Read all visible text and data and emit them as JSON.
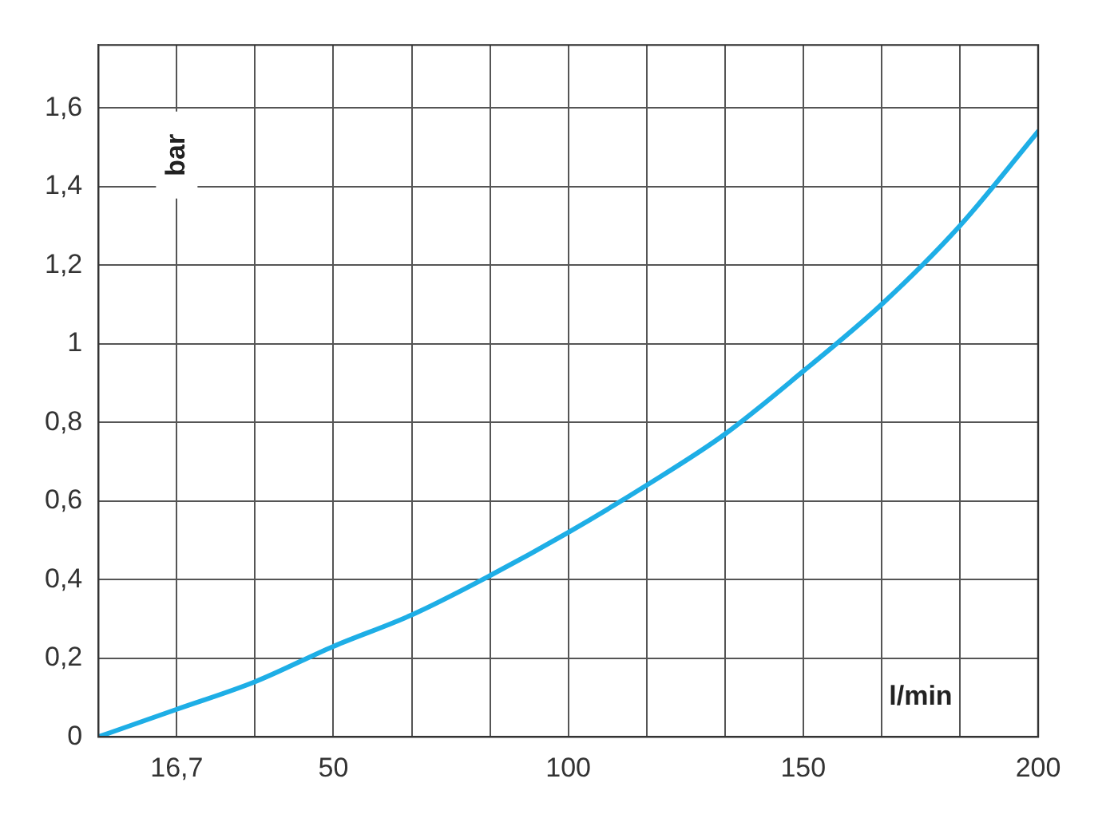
{
  "chart_data": {
    "type": "line",
    "xlabel": "l/min",
    "ylabel": "bar",
    "x": [
      0,
      16.67,
      33.33,
      50,
      66.67,
      83.33,
      100,
      116.67,
      133.33,
      150,
      166.67,
      183.33,
      200
    ],
    "series": [
      {
        "color": "#1eaee6",
        "values": [
          0,
          0.07,
          0.14,
          0.23,
          0.31,
          0.41,
          0.52,
          0.64,
          0.77,
          0.93,
          1.1,
          1.3,
          1.54
        ]
      }
    ],
    "xlim": [
      0,
      200
    ],
    "xticks": [
      {
        "value": 0,
        "label": null
      },
      {
        "value": 16.67,
        "label": "16,7"
      },
      {
        "value": 33.33,
        "label": null
      },
      50,
      {
        "value": 66.67,
        "label": null
      },
      {
        "value": 83.33,
        "label": null
      },
      100,
      {
        "value": 116.67,
        "label": null
      },
      {
        "value": 133.33,
        "label": null
      },
      150,
      {
        "value": 166.67,
        "label": null
      },
      {
        "value": 183.33,
        "label": null
      },
      200
    ],
    "ylim": [
      0,
      1.76
    ],
    "yticks": [
      0,
      {
        "value": 0.2,
        "label": "0,2"
      },
      {
        "value": 0.4,
        "label": "0,4"
      },
      {
        "value": 0.6,
        "label": "0,6"
      },
      {
        "value": 0.8,
        "label": "0,8"
      },
      1,
      {
        "value": 1.2,
        "label": "1,2"
      },
      {
        "value": 1.4,
        "label": "1,4"
      },
      {
        "value": 1.6,
        "label": "1,6"
      }
    ],
    "grid": true,
    "legend": false,
    "marker": "none",
    "line_style": "solid"
  }
}
